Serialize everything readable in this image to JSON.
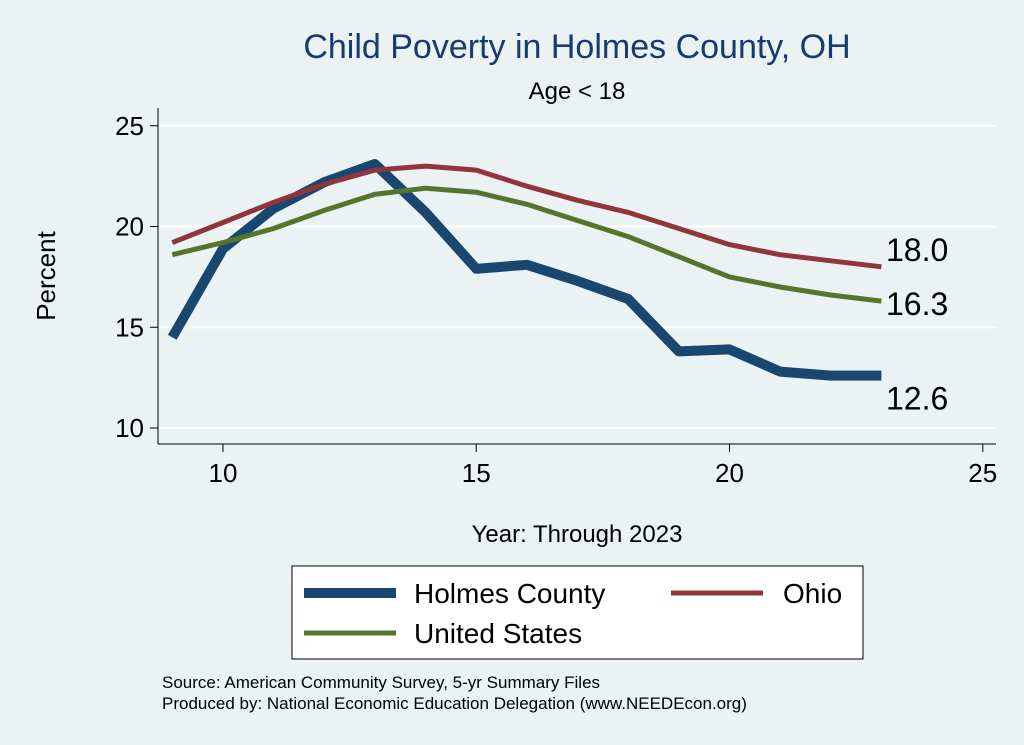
{
  "chart_data": {
    "type": "line",
    "title": "Child Poverty in Holmes County, OH",
    "subtitle": "Age < 18",
    "xlabel": "Year: Through 2023",
    "ylabel": "Percent",
    "xlim": [
      9,
      25
    ],
    "ylim": [
      10,
      25
    ],
    "xticks": [
      "10",
      "15",
      "20",
      "25"
    ],
    "yticks": [
      "10",
      "15",
      "20",
      "25"
    ],
    "grid": true,
    "legend_position": "bottom",
    "colors": {
      "Holmes County": "#1a476f",
      "Ohio": "#90353b",
      "United States": "#55752f",
      "background": "#eaf2f3",
      "title": "#1a3a6e"
    },
    "series": [
      {
        "name": "Holmes County",
        "x": [
          9,
          10,
          11,
          12,
          13,
          14,
          15,
          16,
          17,
          18,
          19,
          20,
          21,
          22,
          23
        ],
        "values": [
          14.5,
          18.9,
          20.9,
          22.2,
          23.1,
          20.7,
          17.9,
          18.1,
          17.3,
          16.4,
          13.8,
          13.9,
          12.8,
          12.6,
          12.6
        ]
      },
      {
        "name": "Ohio",
        "x": [
          9,
          10,
          11,
          12,
          13,
          14,
          15,
          16,
          17,
          18,
          19,
          20,
          21,
          22,
          23
        ],
        "values": [
          19.2,
          20.2,
          21.2,
          22.1,
          22.8,
          23.0,
          22.8,
          22.0,
          21.3,
          20.7,
          19.9,
          19.1,
          18.6,
          18.3,
          18.0
        ]
      },
      {
        "name": "United States",
        "x": [
          9,
          10,
          11,
          12,
          13,
          14,
          15,
          16,
          17,
          18,
          19,
          20,
          21,
          22,
          23
        ],
        "values": [
          18.6,
          19.2,
          19.9,
          20.8,
          21.6,
          21.9,
          21.7,
          21.1,
          20.3,
          19.5,
          18.5,
          17.5,
          17.0,
          16.6,
          16.3
        ]
      }
    ],
    "end_labels": [
      {
        "series": "Ohio",
        "text": "18.0"
      },
      {
        "series": "United States",
        "text": "16.3"
      },
      {
        "series": "Holmes County",
        "text": "12.6"
      }
    ],
    "legend": [
      "Holmes County",
      "Ohio",
      "United States"
    ],
    "notes": [
      "Source: American Community Survey, 5-yr Summary Files",
      "Produced by: National Economic Education Delegation (www.NEEDEcon.org)"
    ]
  }
}
